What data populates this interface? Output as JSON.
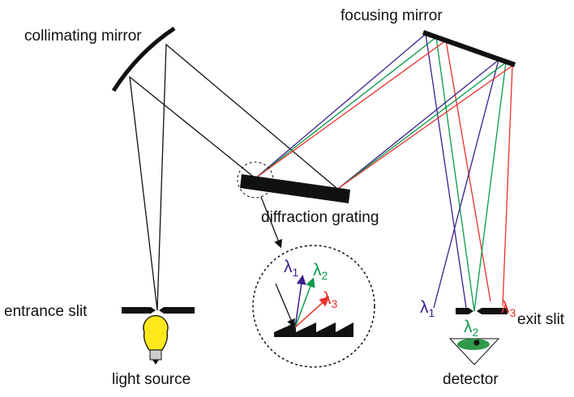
{
  "labels": {
    "collimating_mirror": "collimating mirror",
    "focusing_mirror": "focusing mirror",
    "diffraction_grating": "diffraction grating",
    "entrance_slit": "entrance slit",
    "exit_slit": "exit slit",
    "light_source": "light source",
    "detector": "detector"
  },
  "inset_lambdas": [
    {
      "symbol": "λ",
      "sub": "1"
    },
    {
      "symbol": "λ",
      "sub": "2"
    },
    {
      "symbol": "λ",
      "sub": "3"
    }
  ],
  "exit_lambdas": [
    {
      "symbol": "λ",
      "sub": "1"
    },
    {
      "symbol": "λ",
      "sub": "2"
    },
    {
      "symbol": "λ",
      "sub": "3"
    }
  ]
}
